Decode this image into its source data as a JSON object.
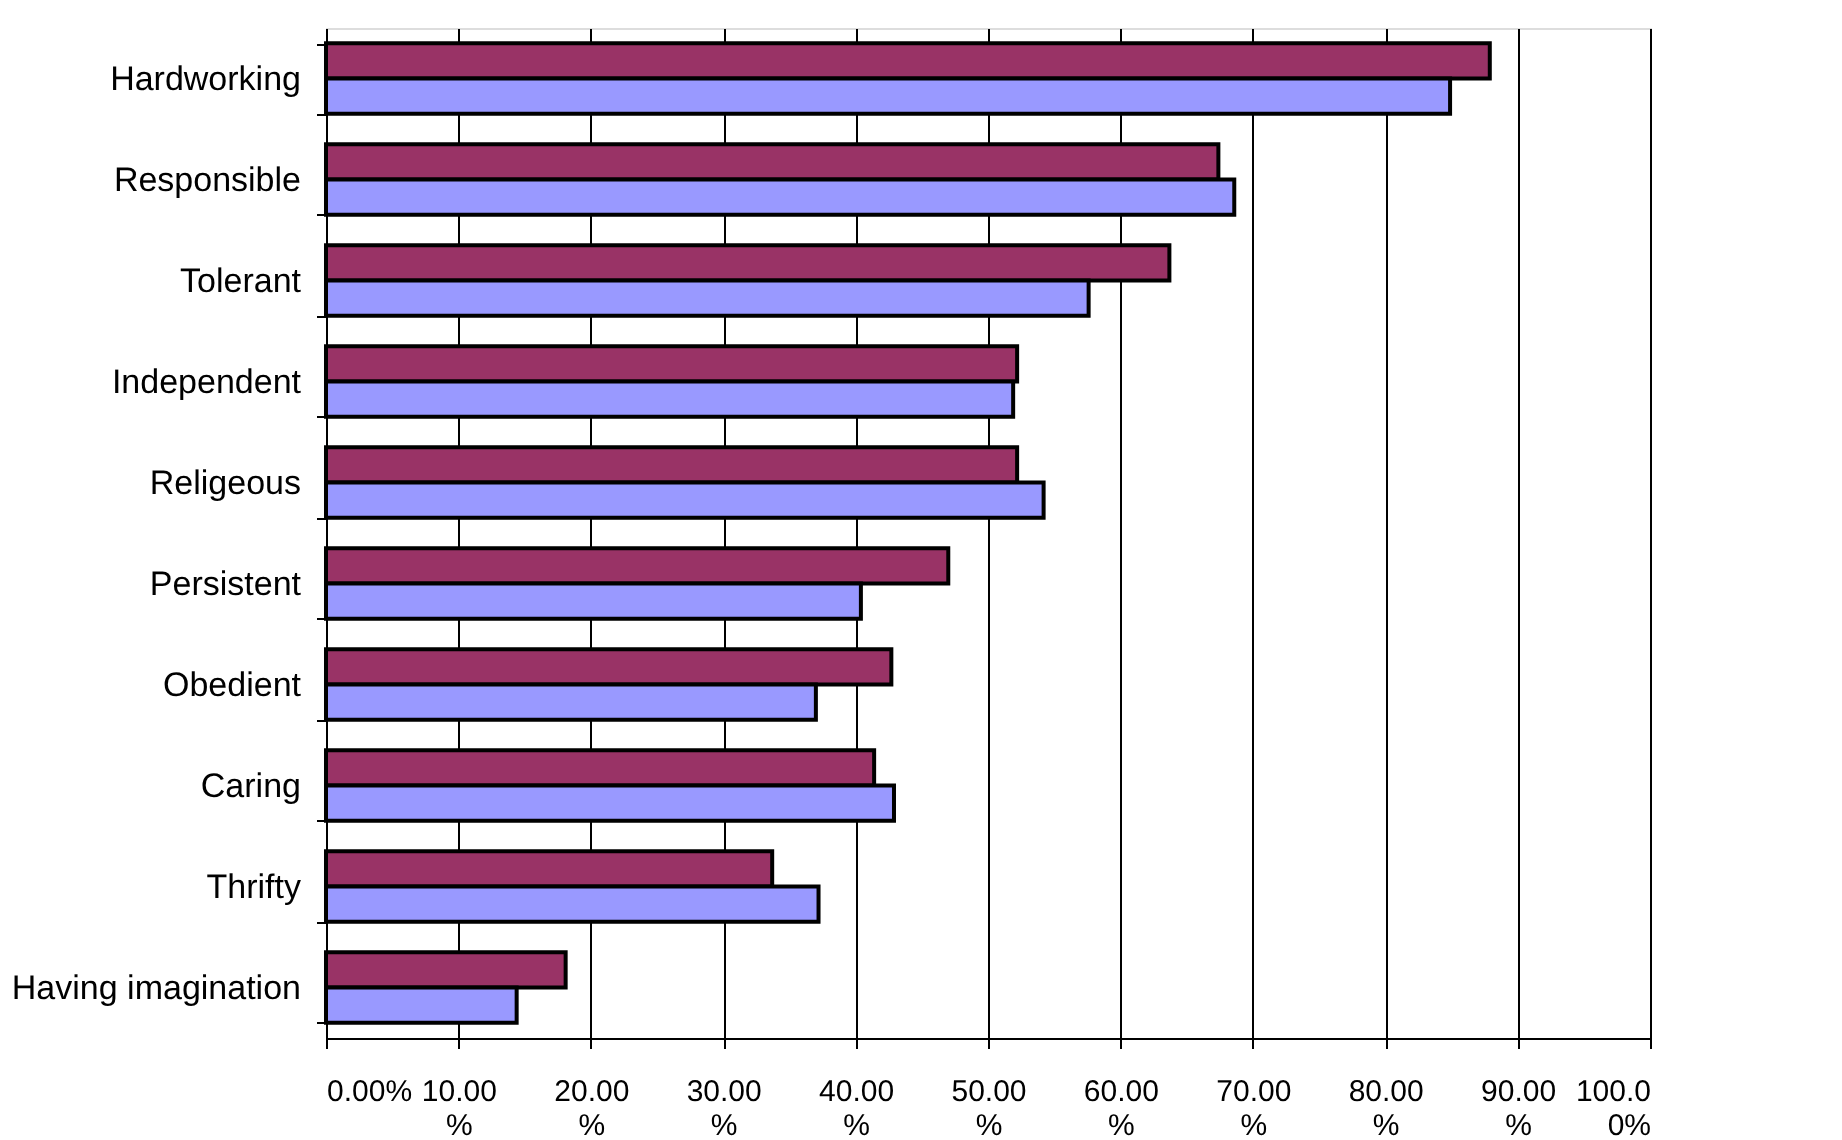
{
  "chart_data": {
    "type": "bar",
    "orientation": "horizontal",
    "grid": "x",
    "categories": [
      "Hardworking",
      "Responsible",
      "Tolerant",
      "Independent",
      "Religeous",
      "Persistent",
      "Obedient",
      "Caring",
      "Thrifty",
      "Having imagination"
    ],
    "series": [
      {
        "color": "#993366",
        "values": [
          87.9,
          67.4,
          63.7,
          52.2,
          52.2,
          47.0,
          42.7,
          41.4,
          33.7,
          18.1
        ]
      },
      {
        "color": "#9999ff",
        "values": [
          84.9,
          68.6,
          57.6,
          51.9,
          54.2,
          40.4,
          37.0,
          42.9,
          37.2,
          14.4
        ]
      }
    ],
    "xlim": [
      0,
      100
    ],
    "xticks": [
      {
        "value": 0,
        "label": "0.00%"
      },
      {
        "value": 10,
        "label": "10.00%"
      },
      {
        "value": 20,
        "label": "20.00%"
      },
      {
        "value": 30,
        "label": "30.00%"
      },
      {
        "value": 40,
        "label": "40.00%"
      },
      {
        "value": 50,
        "label": "50.00%"
      },
      {
        "value": 60,
        "label": "60.00%"
      },
      {
        "value": 70,
        "label": "70.00%"
      },
      {
        "value": 80,
        "label": "80.00%"
      },
      {
        "value": 90,
        "label": "90.00%"
      },
      {
        "value": 100,
        "label": "100.00%"
      }
    ]
  }
}
